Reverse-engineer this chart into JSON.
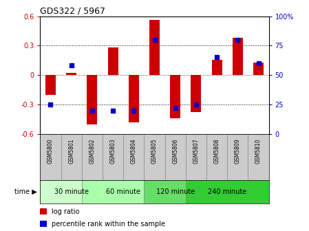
{
  "title": "GDS322 / 5967",
  "samples": [
    "GSM5800",
    "GSM5801",
    "GSM5802",
    "GSM5803",
    "GSM5804",
    "GSM5805",
    "GSM5806",
    "GSM5807",
    "GSM5808",
    "GSM5809",
    "GSM5810"
  ],
  "log_ratio": [
    -0.2,
    0.02,
    -0.5,
    0.285,
    -0.48,
    0.565,
    -0.44,
    -0.38,
    0.155,
    0.38,
    0.13
  ],
  "percentile": [
    25,
    58,
    20,
    20,
    20,
    80,
    22,
    25,
    65,
    80,
    60
  ],
  "ylim_left": [
    -0.6,
    0.6
  ],
  "ylim_right": [
    0,
    100
  ],
  "yticks_left": [
    -0.6,
    -0.3,
    0,
    0.3,
    0.6
  ],
  "yticks_right": [
    0,
    25,
    50,
    75,
    100
  ],
  "bar_color": "#cc0000",
  "dot_color": "#0000cc",
  "bg_color": "#ffffff",
  "sample_bg": "#cccccc",
  "group_boundaries": [
    {
      "start": 0,
      "end": 2,
      "label": "30 minute",
      "color": "#ccffcc"
    },
    {
      "start": 2,
      "end": 5,
      "label": "60 minute",
      "color": "#aaffaa"
    },
    {
      "start": 5,
      "end": 7,
      "label": "120 minute",
      "color": "#66dd66"
    },
    {
      "start": 7,
      "end": 10,
      "label": "240 minute",
      "color": "#33cc33"
    }
  ],
  "legend_logratio": "log ratio",
  "legend_percentile": "percentile rank within the sample",
  "bar_width": 0.5
}
